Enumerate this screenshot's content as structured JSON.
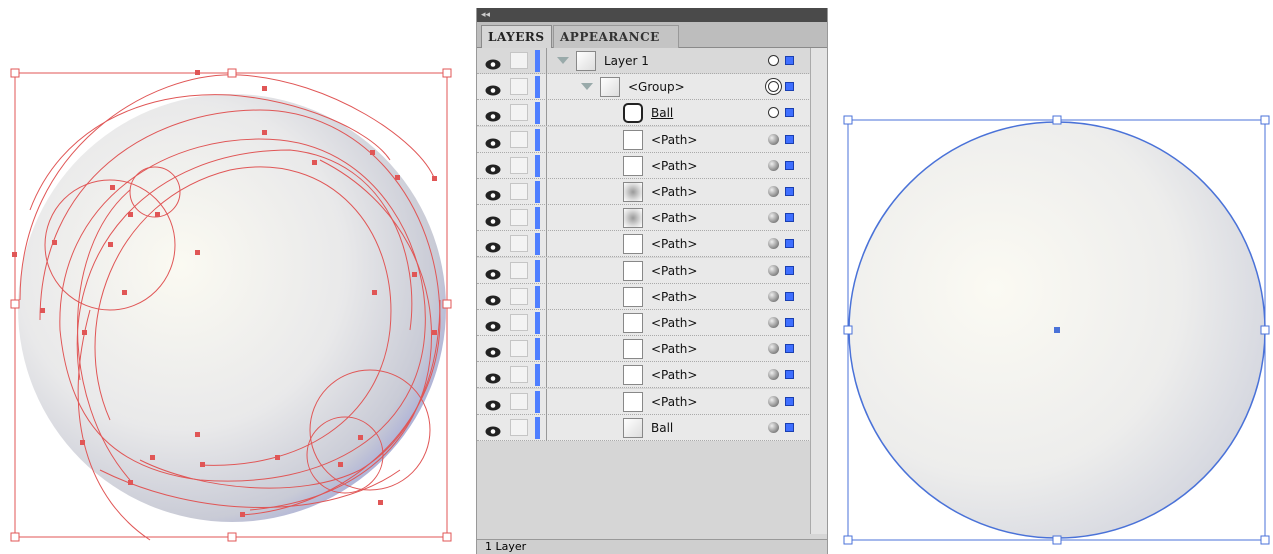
{
  "panel": {
    "tabs": [
      "LAYERS",
      "APPEARANCE"
    ],
    "layers": [
      "Layer 1",
      "<Group>",
      "Ball",
      "<Path>",
      "<Path>",
      "<Path>",
      "<Path>",
      "<Path>",
      "<Path>",
      "<Path>",
      "<Path>",
      "<Path>",
      "<Path>",
      "<Path>",
      "Ball"
    ],
    "footer": "1 Layer"
  }
}
